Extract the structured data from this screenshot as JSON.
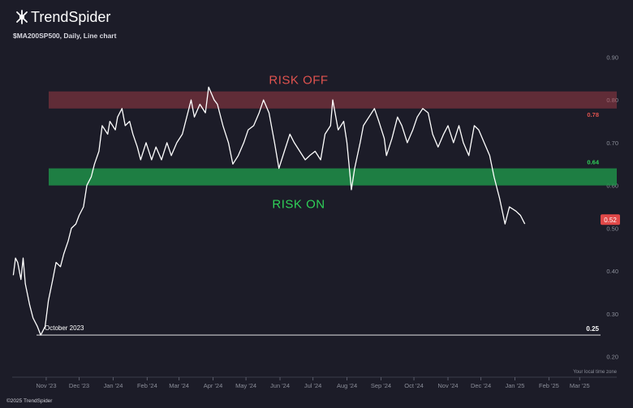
{
  "brand": {
    "name": "TrendSpider",
    "copyright": "©2025 TrendSpider"
  },
  "chart_header": "$MA200SP500, Daily, Line chart",
  "timezone_note": "Your local time zone",
  "colors": {
    "background": "#1c1c28",
    "line": "#ffffff",
    "risk_off_band": "#b3404a",
    "risk_off_text": "#e0534f",
    "risk_on_band": "#1f8f48",
    "risk_on_text": "#2fd158",
    "last_badge": "#e04848",
    "axis_text": "#8b8e99"
  },
  "chart_data": {
    "type": "line",
    "title": "$MA200SP500, Daily, Line chart",
    "y_ticks": [
      "0.90",
      "0.80",
      "0.70",
      "0.60",
      "0.50",
      "0.40",
      "0.30",
      "0.20"
    ],
    "ylim": [
      0.18,
      0.92
    ],
    "x_ticks": [
      "Nov '23",
      "Dec '23",
      "Jan '24",
      "Feb '24",
      "Mar '24",
      "Apr '24",
      "May '24",
      "Jun '24",
      "Jul '24",
      "Aug '24",
      "Sep '24",
      "Oct '24",
      "Nov '24",
      "Dec '24",
      "Jan '25",
      "Feb '25",
      "Mar '25"
    ],
    "x_domain": [
      "2023-10-01",
      "2025-03-20"
    ],
    "bands": [
      {
        "label": "RISK OFF",
        "from": 0.78,
        "to": 0.82,
        "value_label": "0.78"
      },
      {
        "label": "RISK ON",
        "from": 0.6,
        "to": 0.64,
        "value_label": "0.64"
      }
    ],
    "reference_line": {
      "value": 0.25,
      "value_label": "0.25",
      "annotation": "October 2023"
    },
    "last_value": "0.52",
    "series": [
      {
        "points": [
          [
            "2023-10-02",
            0.39
          ],
          [
            "2023-10-04",
            0.43
          ],
          [
            "2023-10-06",
            0.42
          ],
          [
            "2023-10-09",
            0.38
          ],
          [
            "2023-10-11",
            0.43
          ],
          [
            "2023-10-13",
            0.37
          ],
          [
            "2023-10-17",
            0.32
          ],
          [
            "2023-10-20",
            0.29
          ],
          [
            "2023-10-24",
            0.27
          ],
          [
            "2023-10-27",
            0.25
          ],
          [
            "2023-10-31",
            0.27
          ],
          [
            "2023-11-03",
            0.33
          ],
          [
            "2023-11-07",
            0.38
          ],
          [
            "2023-11-10",
            0.42
          ],
          [
            "2023-11-14",
            0.41
          ],
          [
            "2023-11-17",
            0.44
          ],
          [
            "2023-11-21",
            0.47
          ],
          [
            "2023-11-24",
            0.5
          ],
          [
            "2023-11-28",
            0.51
          ],
          [
            "2023-12-01",
            0.53
          ],
          [
            "2023-12-05",
            0.55
          ],
          [
            "2023-12-08",
            0.6
          ],
          [
            "2023-12-12",
            0.62
          ],
          [
            "2023-12-15",
            0.65
          ],
          [
            "2023-12-19",
            0.68
          ],
          [
            "2023-12-22",
            0.74
          ],
          [
            "2023-12-27",
            0.72
          ],
          [
            "2023-12-29",
            0.75
          ],
          [
            "2024-01-03",
            0.73
          ],
          [
            "2024-01-05",
            0.76
          ],
          [
            "2024-01-09",
            0.78
          ],
          [
            "2024-01-12",
            0.74
          ],
          [
            "2024-01-16",
            0.75
          ],
          [
            "2024-01-19",
            0.72
          ],
          [
            "2024-01-23",
            0.69
          ],
          [
            "2024-01-26",
            0.66
          ],
          [
            "2024-01-31",
            0.7
          ],
          [
            "2024-02-05",
            0.66
          ],
          [
            "2024-02-09",
            0.69
          ],
          [
            "2024-02-14",
            0.66
          ],
          [
            "2024-02-19",
            0.7
          ],
          [
            "2024-02-23",
            0.67
          ],
          [
            "2024-02-28",
            0.7
          ],
          [
            "2024-03-04",
            0.72
          ],
          [
            "2024-03-08",
            0.76
          ],
          [
            "2024-03-12",
            0.8
          ],
          [
            "2024-03-15",
            0.76
          ],
          [
            "2024-03-20",
            0.79
          ],
          [
            "2024-03-25",
            0.77
          ],
          [
            "2024-03-28",
            0.83
          ],
          [
            "2024-04-02",
            0.8
          ],
          [
            "2024-04-05",
            0.79
          ],
          [
            "2024-04-10",
            0.74
          ],
          [
            "2024-04-15",
            0.7
          ],
          [
            "2024-04-19",
            0.65
          ],
          [
            "2024-04-24",
            0.67
          ],
          [
            "2024-04-29",
            0.7
          ],
          [
            "2024-05-03",
            0.73
          ],
          [
            "2024-05-08",
            0.74
          ],
          [
            "2024-05-13",
            0.77
          ],
          [
            "2024-05-17",
            0.8
          ],
          [
            "2024-05-22",
            0.77
          ],
          [
            "2024-05-27",
            0.7
          ],
          [
            "2024-05-31",
            0.64
          ],
          [
            "2024-06-05",
            0.68
          ],
          [
            "2024-06-10",
            0.72
          ],
          [
            "2024-06-14",
            0.7
          ],
          [
            "2024-06-19",
            0.68
          ],
          [
            "2024-06-24",
            0.66
          ],
          [
            "2024-06-28",
            0.67
          ],
          [
            "2024-07-03",
            0.68
          ],
          [
            "2024-07-08",
            0.66
          ],
          [
            "2024-07-12",
            0.72
          ],
          [
            "2024-07-17",
            0.74
          ],
          [
            "2024-07-19",
            0.8
          ],
          [
            "2024-07-24",
            0.73
          ],
          [
            "2024-07-29",
            0.75
          ],
          [
            "2024-08-01",
            0.7
          ],
          [
            "2024-08-05",
            0.59
          ],
          [
            "2024-08-08",
            0.64
          ],
          [
            "2024-08-13",
            0.7
          ],
          [
            "2024-08-16",
            0.74
          ],
          [
            "2024-08-21",
            0.76
          ],
          [
            "2024-08-26",
            0.78
          ],
          [
            "2024-08-30",
            0.75
          ],
          [
            "2024-09-04",
            0.71
          ],
          [
            "2024-09-06",
            0.67
          ],
          [
            "2024-09-11",
            0.71
          ],
          [
            "2024-09-16",
            0.76
          ],
          [
            "2024-09-20",
            0.74
          ],
          [
            "2024-09-25",
            0.7
          ],
          [
            "2024-09-30",
            0.73
          ],
          [
            "2024-10-04",
            0.76
          ],
          [
            "2024-10-09",
            0.78
          ],
          [
            "2024-10-14",
            0.77
          ],
          [
            "2024-10-18",
            0.72
          ],
          [
            "2024-10-23",
            0.69
          ],
          [
            "2024-10-28",
            0.72
          ],
          [
            "2024-11-01",
            0.74
          ],
          [
            "2024-11-06",
            0.7
          ],
          [
            "2024-11-11",
            0.74
          ],
          [
            "2024-11-15",
            0.7
          ],
          [
            "2024-11-20",
            0.67
          ],
          [
            "2024-11-25",
            0.74
          ],
          [
            "2024-11-29",
            0.73
          ],
          [
            "2024-12-04",
            0.7
          ],
          [
            "2024-12-09",
            0.67
          ],
          [
            "2024-12-13",
            0.62
          ],
          [
            "2024-12-18",
            0.57
          ],
          [
            "2024-12-23",
            0.51
          ],
          [
            "2024-12-27",
            0.55
          ],
          [
            "2025-01-02",
            0.54
          ],
          [
            "2025-01-06",
            0.53
          ],
          [
            "2025-01-10",
            0.51
          ]
        ]
      }
    ]
  }
}
